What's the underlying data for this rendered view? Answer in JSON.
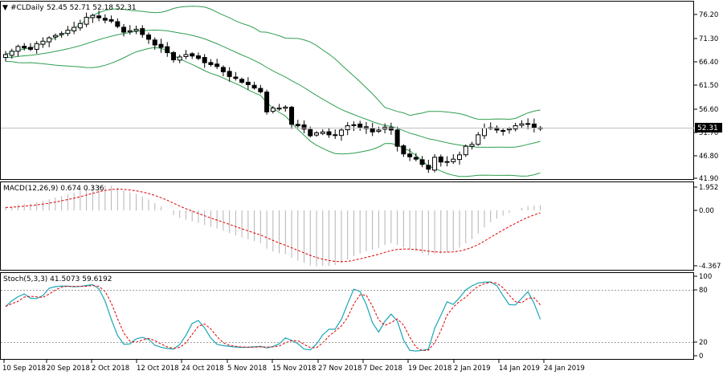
{
  "main_panel": {
    "title": "#CLDaily",
    "ohlc": "52.45 52.71 52.18 52.31",
    "price_ticks": [
      "76.20",
      "71.30",
      "66.40",
      "61.50",
      "56.60",
      "51.70",
      "46.80",
      "41.90"
    ],
    "current_price": "52.31",
    "band_color": "#2e9e4f",
    "candle_color": "#000000"
  },
  "macd_panel": {
    "title": "MACD(12,26,9) 0.674 0.336",
    "ticks": [
      "1.952",
      "0.00",
      "-4.367"
    ],
    "histogram_color": "#b4b4b4",
    "signal_color": "#e00000"
  },
  "stoch_panel": {
    "title": "Stoch(5,3,3) 41.5073 59.6192",
    "ticks": [
      "100",
      "80",
      "20",
      "0"
    ],
    "main_color": "#1aa6b7",
    "signal_color": "#e00000"
  },
  "time_axis": {
    "labels": [
      "10 Sep 2018",
      "20 Sep 2018",
      "2 Oct 2018",
      "12 Oct 2018",
      "24 Oct 2018",
      "5 Nov 2018",
      "15 Nov 2018",
      "27 Nov 2018",
      "7 Dec 2018",
      "19 Dec 2018",
      "2 Jan 2019",
      "14 Jan 2019",
      "24 Jan 2019"
    ]
  },
  "chart_data": [
    {
      "type": "candlestick",
      "title": "#CLDaily",
      "ylim": [
        41.9,
        76.2
      ],
      "closes": [
        67.8,
        68.5,
        69.5,
        69.2,
        68.9,
        70.1,
        70.6,
        71.3,
        71.8,
        72.2,
        72.9,
        73.5,
        74.3,
        75.6,
        76.0,
        75.5,
        75.0,
        74.8,
        73.7,
        72.5,
        72.8,
        73.1,
        72.0,
        71.0,
        69.8,
        69.3,
        68.2,
        66.7,
        67.3,
        67.8,
        67.5,
        67.0,
        66.1,
        65.7,
        65.3,
        64.2,
        63.2,
        62.8,
        62.0,
        61.5,
        60.8,
        60.0,
        55.8,
        56.6,
        56.6,
        56.8,
        53.2,
        52.9,
        52.2,
        50.8,
        51.4,
        51.6,
        51.0,
        50.9,
        52.0,
        52.9,
        53.1,
        52.6,
        52.3,
        51.6,
        52.0,
        52.6,
        52.0,
        48.6,
        47.0,
        46.4,
        45.9,
        44.8,
        43.8,
        46.3,
        45.3,
        45.4,
        45.9,
        46.8,
        48.6,
        49.0,
        51.0,
        52.4,
        52.5,
        52.0,
        51.9,
        52.3,
        52.9,
        53.3,
        53.3,
        52.5,
        52.3
      ]
    },
    {
      "type": "line",
      "title": "MACD(12,26,9) 0.674 0.336",
      "ylim": [
        -4.367,
        1.952
      ]
    },
    {
      "type": "line",
      "title": "Stoch(5,3,3) 41.5073 59.6192",
      "ylim": [
        0,
        100
      ]
    }
  ]
}
